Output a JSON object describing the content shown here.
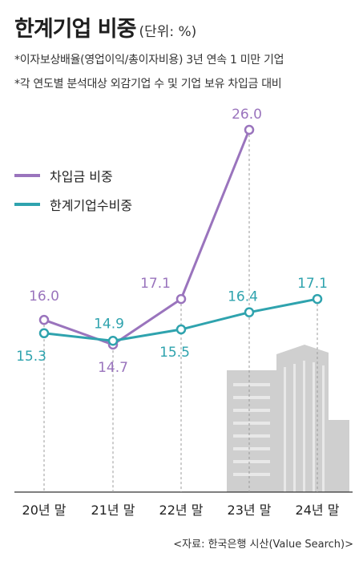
{
  "title": "한계기업 비중",
  "unit": "(단위: %)",
  "notes": [
    "*이자보상배율(영업이익/총이자비용) 3년 연속 1 미만 기업",
    "*각 연도별 분석대상 외감기업 수 및 기업 보유 차입금 대비"
  ],
  "source": "<자료: 한국은행 시산(Value Search)>",
  "colors": {
    "purple": "#9a74bd",
    "teal": "#2fa3ae",
    "building": "#cfcfcf"
  },
  "chart_data": {
    "type": "line",
    "categories": [
      "20년 말",
      "21년 말",
      "22년 말",
      "23년 말",
      "24년 말"
    ],
    "series": [
      {
        "name": "차입금 비중",
        "color": "#9a74bd",
        "values": [
          16.0,
          14.7,
          17.1,
          26.0,
          null
        ],
        "labels": [
          "16.0",
          "14.7",
          "17.1",
          "26.0",
          ""
        ]
      },
      {
        "name": "한계기업수비중",
        "color": "#2fa3ae",
        "values": [
          15.3,
          14.9,
          15.5,
          16.4,
          17.1
        ],
        "labels": [
          "15.3",
          "14.9",
          "15.5",
          "16.4",
          "17.1"
        ]
      }
    ],
    "legend_position": "top-left",
    "grid": false
  }
}
